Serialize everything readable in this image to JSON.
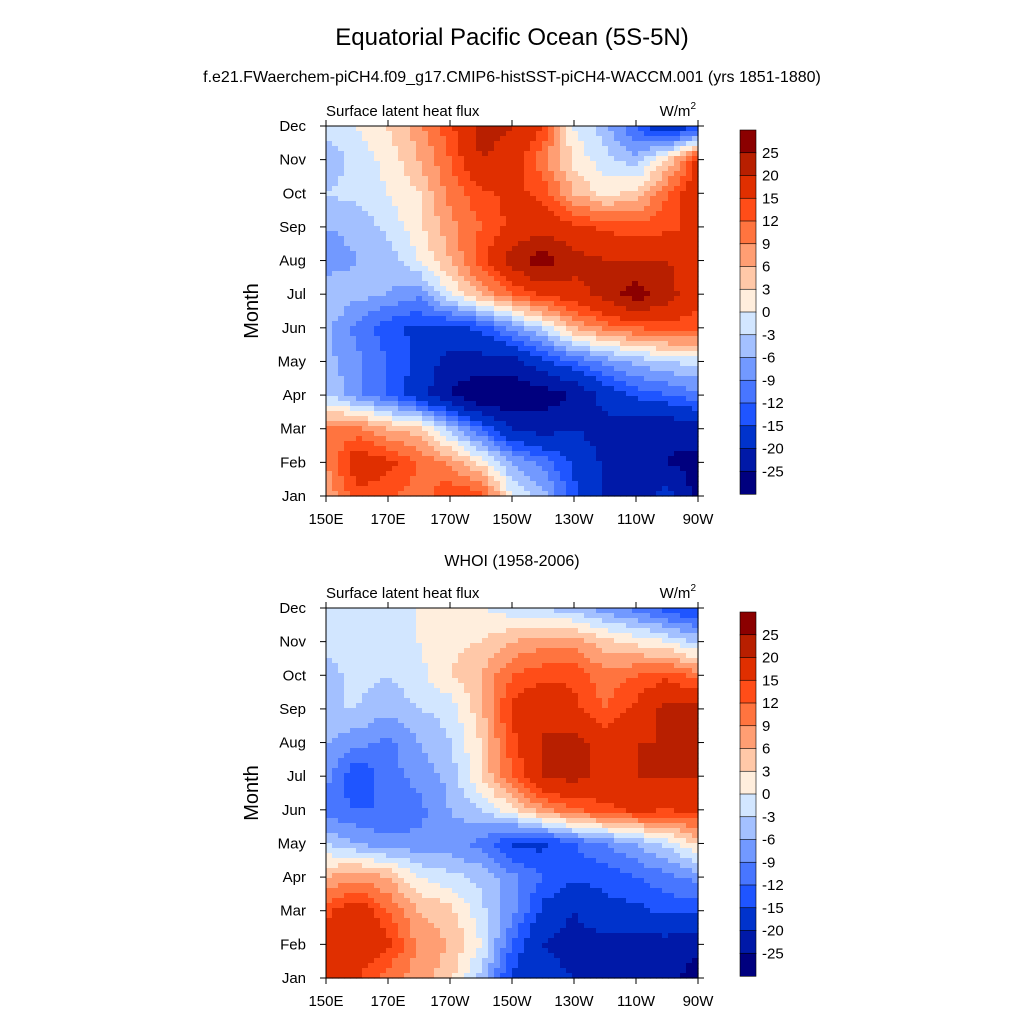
{
  "figure": {
    "title": "Equatorial Pacific Ocean (5S-5N)",
    "subtitle": "f.e21.FWaerchem-piCH4.f09_g17.CMIP6-histSST-piCH4-WACCM.001 (yrs 1851-1880)"
  },
  "colors": {
    "levels_palette": [
      "#00007f",
      "#0019a8",
      "#0033cc",
      "#1f55ff",
      "#4876ff",
      "#7299ff",
      "#a3c0ff",
      "#d2e6ff",
      "#ffeedd",
      "#ffc8a8",
      "#ff9e73",
      "#ff743f",
      "#ff4d18",
      "#e02f00",
      "#b81f00",
      "#8b0000"
    ]
  },
  "chart_data": [
    {
      "type": "heatmap",
      "panel_title": "",
      "left_label": "Surface latent heat flux",
      "units_base": "W/m",
      "units_sup": "2",
      "ylabel": "Month",
      "x_ticks": [
        "150E",
        "170E",
        "170W",
        "150W",
        "130W",
        "110W",
        "90W"
      ],
      "x_values": [
        150,
        170,
        190,
        210,
        230,
        250,
        270
      ],
      "xlim": [
        150,
        270
      ],
      "y_ticks": [
        "Jan",
        "Feb",
        "Mar",
        "Apr",
        "May",
        "Jun",
        "Jul",
        "Aug",
        "Sep",
        "Oct",
        "Nov",
        "Dec"
      ],
      "colorbar_labels": [
        "25",
        "20",
        "15",
        "12",
        "9",
        "6",
        "3",
        "0",
        "-3",
        "-6",
        "-9",
        "-12",
        "-15",
        "-20",
        "-25"
      ],
      "levels": [
        -25,
        -20,
        -15,
        -12,
        -9,
        -6,
        -3,
        0,
        3,
        6,
        9,
        12,
        15,
        20,
        25
      ],
      "grid_lon": [
        150,
        160,
        170,
        180,
        190,
        200,
        210,
        220,
        230,
        240,
        250,
        260,
        270
      ],
      "z": [
        [
          6,
          14,
          13,
          10,
          15,
          14,
          0,
          -5,
          -14,
          -20,
          -22,
          -18,
          -27
        ],
        [
          9,
          18,
          16,
          12,
          8,
          2,
          -6,
          -10,
          -16,
          -21,
          -24,
          -25,
          -27
        ],
        [
          10,
          10,
          6,
          4,
          -4,
          -12,
          -20,
          -22,
          -20,
          -22,
          -23,
          -24,
          -22
        ],
        [
          -3,
          -8,
          -12,
          -18,
          -25,
          -30,
          -30,
          -28,
          -25,
          -18,
          -14,
          -12,
          -10
        ],
        [
          -5,
          -8,
          -12,
          -16,
          -22,
          -22,
          -22,
          -16,
          -12,
          -8,
          -5,
          -3,
          -2
        ],
        [
          -5,
          -10,
          -14,
          -16,
          -16,
          -14,
          -8,
          -2,
          6,
          10,
          12,
          14,
          13
        ],
        [
          -3,
          -5,
          -6,
          -8,
          0,
          6,
          12,
          16,
          18,
          22,
          28,
          22,
          16
        ],
        [
          -8,
          -6,
          -5,
          0,
          6,
          14,
          22,
          28,
          22,
          20,
          20,
          20,
          18
        ],
        [
          -6,
          -5,
          -2,
          2,
          8,
          12,
          16,
          18,
          16,
          14,
          13,
          14,
          16
        ],
        [
          -3,
          -2,
          0,
          3,
          10,
          14,
          16,
          14,
          6,
          2,
          4,
          12,
          18
        ],
        [
          -5,
          -2,
          1,
          6,
          12,
          20,
          18,
          10,
          2,
          -2,
          -5,
          3,
          16
        ],
        [
          -2,
          0,
          3,
          8,
          14,
          22,
          20,
          15,
          0,
          -5,
          -12,
          -20,
          -16
        ]
      ]
    },
    {
      "type": "heatmap",
      "panel_title": "WHOI (1958-2006)",
      "left_label": "Surface latent heat flux",
      "units_base": "W/m",
      "units_sup": "2",
      "ylabel": "Month",
      "x_ticks": [
        "150E",
        "170E",
        "170W",
        "150W",
        "130W",
        "110W",
        "90W"
      ],
      "x_values": [
        150,
        170,
        190,
        210,
        230,
        250,
        270
      ],
      "xlim": [
        150,
        270
      ],
      "y_ticks": [
        "Jan",
        "Feb",
        "Mar",
        "Apr",
        "May",
        "Jun",
        "Jul",
        "Aug",
        "Sep",
        "Oct",
        "Nov",
        "Dec"
      ],
      "colorbar_labels": [
        "25",
        "20",
        "15",
        "12",
        "9",
        "6",
        "3",
        "0",
        "-3",
        "-6",
        "-9",
        "-12",
        "-15",
        "-20",
        "-25"
      ],
      "levels": [
        -25,
        -20,
        -15,
        -12,
        -9,
        -6,
        -3,
        0,
        3,
        6,
        9,
        12,
        15,
        20,
        25
      ],
      "grid_lon": [
        150,
        160,
        170,
        180,
        190,
        200,
        210,
        220,
        230,
        240,
        250,
        260,
        270
      ],
      "z": [
        [
          16,
          15,
          10,
          8,
          4,
          -4,
          -16,
          -18,
          -20,
          -20,
          -22,
          -24,
          -27
        ],
        [
          18,
          20,
          16,
          8,
          6,
          0,
          -12,
          -20,
          -22,
          -22,
          -22,
          -22,
          -24
        ],
        [
          14,
          18,
          12,
          6,
          4,
          -2,
          -8,
          -16,
          -20,
          -16,
          -16,
          -14,
          -14
        ],
        [
          6,
          8,
          6,
          0,
          -2,
          -4,
          -8,
          -12,
          -14,
          -14,
          -12,
          -10,
          -8
        ],
        [
          -3,
          -6,
          -8,
          -8,
          -8,
          -10,
          -16,
          -16,
          -12,
          -9,
          -6,
          -2,
          4
        ],
        [
          -11,
          -12,
          -12,
          -10,
          -6,
          -3,
          2,
          8,
          12,
          14,
          16,
          15,
          16
        ],
        [
          -8,
          -15,
          -10,
          -8,
          -5,
          3,
          12,
          20,
          22,
          18,
          20,
          20,
          20
        ],
        [
          -6,
          -8,
          -10,
          -6,
          -3,
          3,
          14,
          20,
          22,
          18,
          20,
          20,
          22
        ],
        [
          -3,
          -3,
          -5,
          -3,
          -2,
          5,
          16,
          20,
          16,
          12,
          16,
          22,
          22
        ],
        [
          -4,
          -2,
          -3,
          -1,
          3,
          6,
          12,
          14,
          14,
          10,
          12,
          14,
          10
        ],
        [
          -2,
          -2,
          -2,
          0,
          2,
          3,
          6,
          8,
          8,
          4,
          2,
          0,
          -4
        ],
        [
          -3,
          -2,
          -1,
          0,
          1,
          0,
          -2,
          -3,
          -5,
          -8,
          -10,
          -14,
          -16
        ]
      ]
    }
  ]
}
